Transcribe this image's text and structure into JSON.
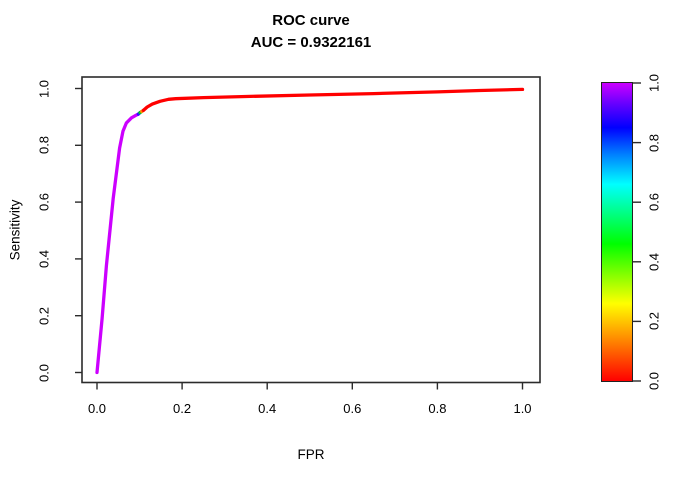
{
  "title": "ROC curve",
  "subtitle": "AUC = 0.9322161",
  "chart_data": {
    "type": "line",
    "title": "ROC curve",
    "subtitle": "AUC = 0.9322161",
    "xlabel": "FPR",
    "ylabel": "Sensitivity",
    "xlim": [
      0,
      1
    ],
    "ylim": [
      0,
      1
    ],
    "xticks": [
      "0.0",
      "0.2",
      "0.4",
      "0.6",
      "0.8",
      "1.0"
    ],
    "yticks": [
      "0.0",
      "0.2",
      "0.4",
      "0.6",
      "0.8",
      "1.0"
    ],
    "grid": false,
    "auc": 0.9322161,
    "description": "ROC curve colored by decision threshold using a rainbow palette (red = threshold 0.0, purple = threshold 1.0)",
    "segments": [
      {
        "name": "threshold-high-purple",
        "color": "#CC00FF",
        "points": [
          [
            0.0,
            0.0
          ],
          [
            0.012,
            0.19
          ],
          [
            0.022,
            0.376
          ],
          [
            0.038,
            0.613
          ],
          [
            0.053,
            0.79
          ],
          [
            0.061,
            0.85
          ],
          [
            0.069,
            0.879
          ],
          [
            0.081,
            0.897
          ],
          [
            0.092,
            0.906
          ],
          [
            0.097,
            0.91
          ]
        ]
      },
      {
        "name": "transition-blue",
        "color": "#3311FF",
        "points": [
          [
            0.097,
            0.91
          ],
          [
            0.101,
            0.915
          ]
        ]
      },
      {
        "name": "transition-green",
        "color": "#00CC22",
        "points": [
          [
            0.101,
            0.915
          ],
          [
            0.105,
            0.919
          ]
        ]
      },
      {
        "name": "transition-orange",
        "color": "#FF8800",
        "points": [
          [
            0.105,
            0.919
          ],
          [
            0.109,
            0.923
          ]
        ]
      },
      {
        "name": "threshold-low-red",
        "color": "#FF0000",
        "points": [
          [
            0.109,
            0.923
          ],
          [
            0.118,
            0.935
          ],
          [
            0.13,
            0.945
          ],
          [
            0.148,
            0.955
          ],
          [
            0.168,
            0.962
          ],
          [
            0.185,
            0.964
          ],
          [
            0.25,
            0.968
          ],
          [
            0.35,
            0.972
          ],
          [
            0.5,
            0.977
          ],
          [
            0.65,
            0.982
          ],
          [
            0.8,
            0.988
          ],
          [
            0.9,
            0.993
          ],
          [
            1.0,
            0.997
          ]
        ]
      }
    ],
    "colorbar": {
      "ticks": [
        "0.0",
        "0.2",
        "0.4",
        "0.6",
        "0.8",
        "1.0"
      ],
      "range": [
        0,
        1
      ],
      "gradient_stops": [
        {
          "pos": 0.0,
          "color": "#FF0000"
        },
        {
          "pos": 0.13,
          "color": "#FF8000"
        },
        {
          "pos": 0.26,
          "color": "#FFFF00"
        },
        {
          "pos": 0.36,
          "color": "#80FF00"
        },
        {
          "pos": 0.46,
          "color": "#00FF00"
        },
        {
          "pos": 0.56,
          "color": "#00FF80"
        },
        {
          "pos": 0.66,
          "color": "#00FFFF"
        },
        {
          "pos": 0.76,
          "color": "#0080FF"
        },
        {
          "pos": 0.85,
          "color": "#0000FF"
        },
        {
          "pos": 0.93,
          "color": "#6600FF"
        },
        {
          "pos": 1.0,
          "color": "#CC00FF"
        }
      ]
    },
    "axis_color": "#2b2b2b"
  }
}
